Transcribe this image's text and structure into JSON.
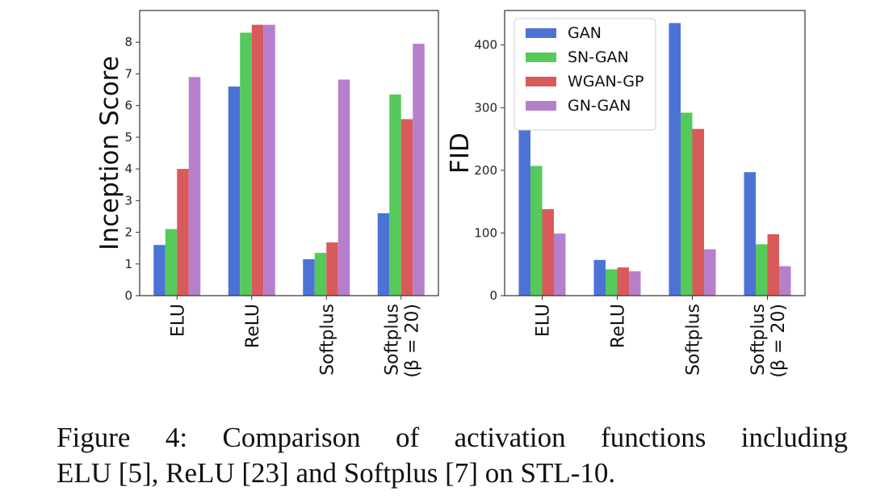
{
  "chart_data": [
    {
      "type": "bar",
      "title": "",
      "xlabel": "",
      "ylabel": "Inception Score",
      "ylim": [
        0,
        9
      ],
      "yticks": [
        0,
        1,
        2,
        3,
        4,
        5,
        6,
        7,
        8
      ],
      "categories": [
        [
          "ELU"
        ],
        [
          "ReLU"
        ],
        [
          "Softplus"
        ],
        [
          "Softplus",
          "(β = 20)"
        ]
      ],
      "series": [
        {
          "name": "GAN",
          "color": "#4c72d6",
          "values": [
            1.6,
            6.6,
            1.15,
            2.6
          ]
        },
        {
          "name": "SN-GAN",
          "color": "#55c95a",
          "values": [
            2.1,
            8.3,
            1.35,
            6.35
          ]
        },
        {
          "name": "WGAN-GP",
          "color": "#d85a5a",
          "values": [
            4.0,
            8.55,
            1.68,
            5.57
          ]
        },
        {
          "name": "GN-GAN",
          "color": "#b77fcb",
          "values": [
            6.9,
            8.55,
            6.82,
            7.95
          ]
        }
      ]
    },
    {
      "type": "bar",
      "title": "",
      "xlabel": "",
      "ylabel": "FID",
      "ylim": [
        0,
        455
      ],
      "yticks": [
        0,
        100,
        200,
        300,
        400
      ],
      "legend": "top-left",
      "categories": [
        [
          "ELU"
        ],
        [
          "ReLU"
        ],
        [
          "Softplus"
        ],
        [
          "Softplus",
          "(β = 20)"
        ]
      ],
      "series": [
        {
          "name": "GAN",
          "color": "#4c72d6",
          "values": [
            270,
            57,
            435,
            197
          ]
        },
        {
          "name": "SN-GAN",
          "color": "#55c95a",
          "values": [
            207,
            42,
            292,
            82
          ]
        },
        {
          "name": "WGAN-GP",
          "color": "#d85a5a",
          "values": [
            138,
            45,
            266,
            98
          ]
        },
        {
          "name": "GN-GAN",
          "color": "#b77fcb",
          "values": [
            99,
            39,
            74,
            47
          ]
        }
      ]
    }
  ],
  "caption": {
    "line1": "Figure 4:  Comparison of activation functions including",
    "line2": "ELU [5], ReLU [23] and Softplus [7] on STL-10."
  }
}
